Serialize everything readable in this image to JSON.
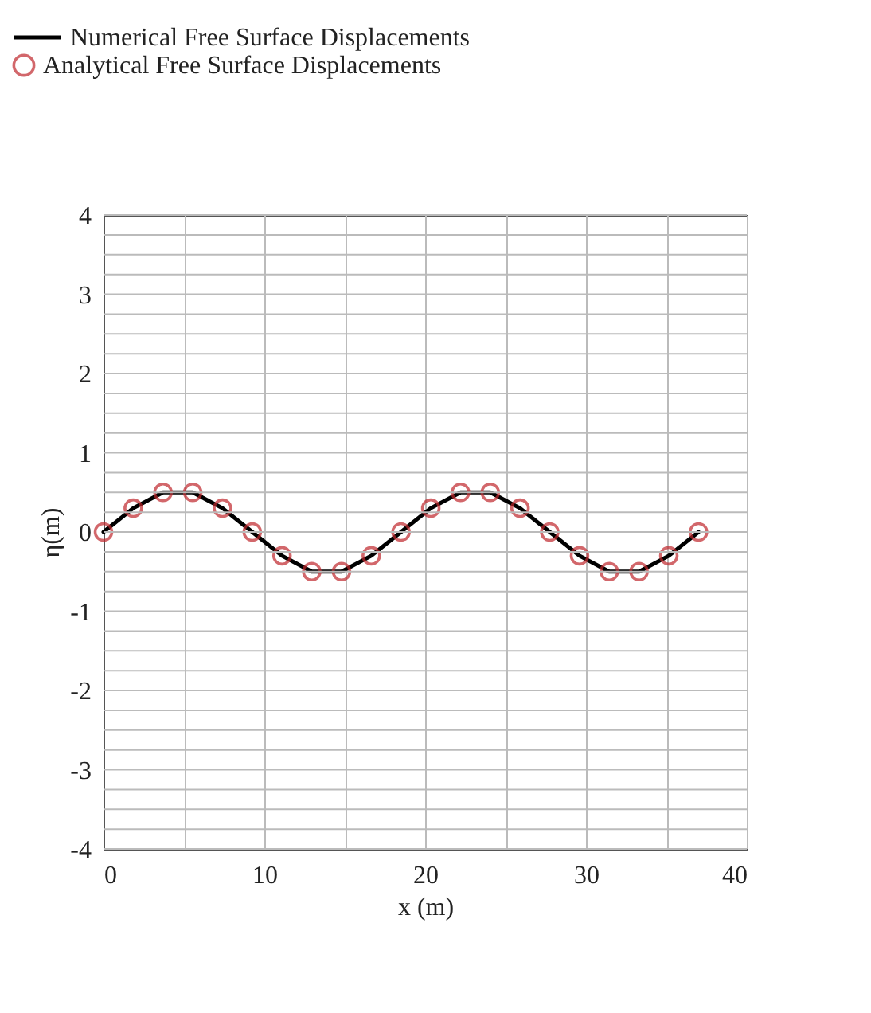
{
  "chart_data": {
    "type": "line",
    "xlabel": "x (m)",
    "ylabel": "η(m)",
    "x": [
      0,
      1.85,
      3.7,
      5.55,
      7.4,
      9.25,
      11.1,
      12.95,
      14.8,
      16.65,
      18.5,
      20.35,
      22.2,
      24.05,
      25.9,
      27.75,
      29.6,
      31.45,
      33.3,
      35.15,
      37
    ],
    "series": [
      {
        "name": "Numerical Free Surface Displacements",
        "type": "line",
        "color": "#000000",
        "marker": "none",
        "line_style": "solid",
        "values": [
          0,
          0.3,
          0.5,
          0.5,
          0.3,
          0,
          -0.3,
          -0.5,
          -0.5,
          -0.3,
          0,
          0.3,
          0.5,
          0.5,
          0.3,
          0,
          -0.3,
          -0.5,
          -0.5,
          -0.3,
          0
        ]
      },
      {
        "name": "Analytical Free Surface Displacements",
        "type": "scatter",
        "color": "#c0282d",
        "marker": "circle",
        "values": [
          0,
          0.3,
          0.5,
          0.5,
          0.3,
          0,
          -0.3,
          -0.5,
          -0.5,
          -0.3,
          0,
          0.3,
          0.5,
          0.5,
          0.3,
          0,
          -0.3,
          -0.5,
          -0.5,
          -0.3,
          0
        ]
      }
    ],
    "xlim": [
      0,
      40
    ],
    "xticks": [
      0,
      {
        "value": 5,
        "label": null
      },
      10,
      {
        "value": 15,
        "label": null
      },
      20,
      {
        "value": 25,
        "label": null
      },
      30,
      {
        "value": 35,
        "label": null
      },
      40
    ],
    "ylim": [
      -4,
      4
    ],
    "yticks": [
      -4,
      {
        "value": -3.75,
        "label": null
      },
      {
        "value": -3.5,
        "label": null
      },
      {
        "value": -3.25,
        "label": null
      },
      -3,
      {
        "value": -2.75,
        "label": null
      },
      {
        "value": -2.5,
        "label": null
      },
      {
        "value": -2.25,
        "label": null
      },
      -2,
      {
        "value": -1.75,
        "label": null
      },
      {
        "value": -1.5,
        "label": null
      },
      {
        "value": -1.25,
        "label": null
      },
      -1,
      {
        "value": -0.75,
        "label": null
      },
      {
        "value": -0.5,
        "label": null
      },
      {
        "value": -0.25,
        "label": null
      },
      0,
      {
        "value": 0.25,
        "label": null
      },
      {
        "value": 0.5,
        "label": null
      },
      {
        "value": 0.75,
        "label": null
      },
      1,
      {
        "value": 1.25,
        "label": null
      },
      {
        "value": 1.5,
        "label": null
      },
      {
        "value": 1.75,
        "label": null
      },
      2,
      {
        "value": 2.25,
        "label": null
      },
      {
        "value": 2.5,
        "label": null
      },
      {
        "value": 2.75,
        "label": null
      },
      3,
      {
        "value": 3.25,
        "label": null
      },
      {
        "value": 3.5,
        "label": null
      },
      {
        "value": 3.75,
        "label": null
      },
      4
    ],
    "grid": true,
    "legend": "top"
  }
}
